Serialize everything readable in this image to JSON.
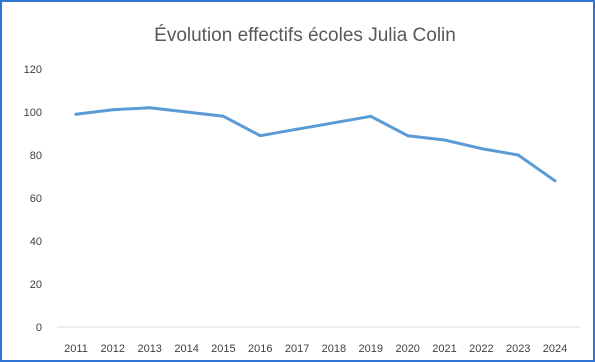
{
  "chart_data": {
    "type": "line",
    "title": "Évolution effectifs écoles Julia Colin",
    "xlabel": "",
    "ylabel": "",
    "categories": [
      "2011",
      "2012",
      "2013",
      "2014",
      "2015",
      "2016",
      "2017",
      "2018",
      "2019",
      "2020",
      "2021",
      "2022",
      "2023",
      "2024"
    ],
    "series": [
      {
        "values": [
          99,
          101,
          102,
          100,
          98,
          89,
          92,
          95,
          98,
          89,
          87,
          83,
          80,
          68
        ]
      }
    ],
    "ylim": [
      0,
      120
    ],
    "yticks": [
      "0",
      "20",
      "40",
      "60",
      "80",
      "100",
      "120"
    ],
    "grid": false,
    "legend": "none",
    "line_color": "#5b9bd5",
    "frame_color": "#2e75d6"
  }
}
